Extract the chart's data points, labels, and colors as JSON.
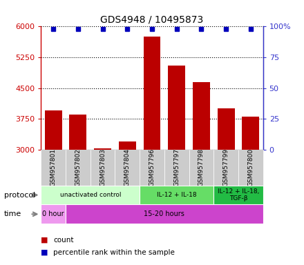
{
  "title": "GDS4948 / 10495873",
  "samples": [
    "GSM957801",
    "GSM957802",
    "GSM957803",
    "GSM957804",
    "GSM957796",
    "GSM957797",
    "GSM957798",
    "GSM957799",
    "GSM957800"
  ],
  "counts": [
    3950,
    3850,
    3030,
    3200,
    5750,
    5050,
    4650,
    4000,
    3800
  ],
  "percentile_ranks": [
    98,
    98,
    98,
    98,
    98,
    98,
    98,
    98,
    98
  ],
  "ylim_left": [
    3000,
    6000
  ],
  "ylim_right": [
    0,
    100
  ],
  "yticks_left": [
    3000,
    3750,
    4500,
    5250,
    6000
  ],
  "yticks_right": [
    0,
    25,
    50,
    75,
    100
  ],
  "bar_color": "#bb0000",
  "dot_color": "#0000bb",
  "protocol_groups": [
    {
      "label": "unactivated control",
      "start": 0,
      "end": 4,
      "color": "#ccffcc"
    },
    {
      "label": "IL-12 + IL-18",
      "start": 4,
      "end": 7,
      "color": "#66dd66"
    },
    {
      "label": "IL-12 + IL-18,\nTGF-β",
      "start": 7,
      "end": 9,
      "color": "#22bb44"
    }
  ],
  "time_groups": [
    {
      "label": "0 hour",
      "start": 0,
      "end": 1,
      "color": "#ee99ee"
    },
    {
      "label": "15-20 hours",
      "start": 1,
      "end": 9,
      "color": "#cc44cc"
    }
  ],
  "protocol_label": "protocol",
  "time_label": "time",
  "legend_count": "count",
  "legend_pct": "percentile rank within the sample",
  "title_fontsize": 10,
  "bar_width": 0.7,
  "label_box_color": "#cccccc",
  "right_tick_color": "#3333cc",
  "left_tick_color": "#cc0000"
}
